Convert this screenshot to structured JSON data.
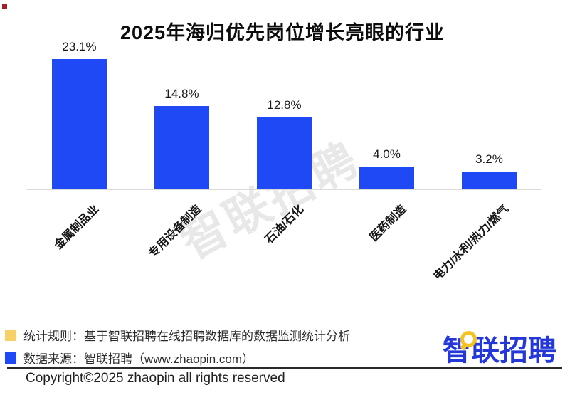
{
  "title": "2025年海归优先岗位增长亮眼的行业",
  "decorations": {
    "corner_marker_color": "#a32126"
  },
  "chart_data": {
    "type": "bar",
    "title": "2025年海归优先岗位增长亮眼的行业",
    "categories": [
      "金属制品业",
      "专用设备制造",
      "石油/石化",
      "医药制造",
      "电力/水利/热力/燃气"
    ],
    "values": [
      23.1,
      14.8,
      12.8,
      4.0,
      3.2
    ],
    "value_labels": [
      "23.1%",
      "14.8%",
      "12.8%",
      "4.0%",
      "3.2%"
    ],
    "xlabel": "",
    "ylabel": "",
    "ylim": [
      0,
      25
    ],
    "grid": false,
    "legend": "none",
    "bar_color": "#1e49f5",
    "axis_line_color": "#dadada",
    "watermark": "智联招聘"
  },
  "footer": {
    "legend": [
      {
        "swatch_color": "#f8d06a",
        "text": "统计规则：基于智联招聘在线招聘数据库的数据监测统计分析"
      },
      {
        "swatch_color": "#1e49f5",
        "text": "数据来源：智联招聘（www.zhaopin.com）"
      }
    ],
    "logo": {
      "text": "智联招聘",
      "color": "#2438d8",
      "bubble_color": "#f2c321"
    },
    "copyright": "Copyright©2025 zhaopin all rights reserved"
  }
}
